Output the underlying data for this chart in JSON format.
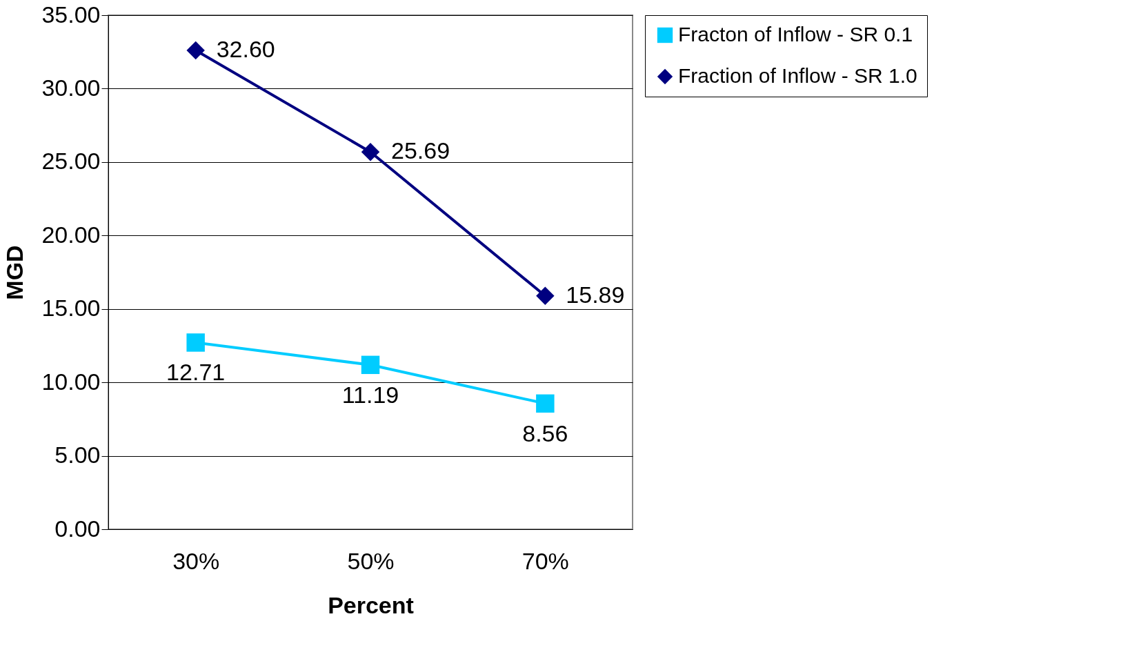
{
  "chart_data": {
    "type": "line",
    "xlabel": "Percent",
    "ylabel": "MGD",
    "categories": [
      "30%",
      "50%",
      "70%"
    ],
    "series": [
      {
        "name": "Fracton of Inflow - SR 0.1",
        "color": "#00ccff",
        "marker": "square",
        "values": [
          12.71,
          11.19,
          8.56
        ],
        "value_labels": [
          "12.71",
          "11.19",
          "8.56"
        ]
      },
      {
        "name": "Fraction of Inflow - SR 1.0",
        "color": "#000080",
        "marker": "diamond",
        "values": [
          32.6,
          25.69,
          15.89
        ],
        "value_labels": [
          "32.60",
          "25.69",
          "15.89"
        ]
      }
    ],
    "ylim": [
      0,
      35
    ],
    "yticks": [
      {
        "value": 0,
        "label": "0.00"
      },
      {
        "value": 5,
        "label": "5.00"
      },
      {
        "value": 10,
        "label": "10.00"
      },
      {
        "value": 15,
        "label": "15.00"
      },
      {
        "value": 20,
        "label": "20.00"
      },
      {
        "value": 25,
        "label": "25.00"
      },
      {
        "value": 30,
        "label": "30.00"
      },
      {
        "value": 35,
        "label": "35.00"
      }
    ],
    "grid": "y",
    "legend": "right",
    "line_style": "solid"
  }
}
